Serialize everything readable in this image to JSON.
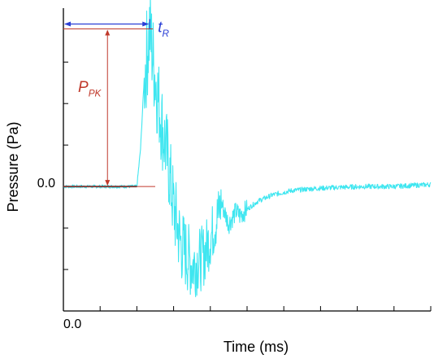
{
  "chart_data": {
    "type": "line",
    "xlabel": "Time (ms)",
    "ylabel": "Pressure (Pa)",
    "x_tick_label": "0.0",
    "y_tick_label": "0.0",
    "xlim": [
      0,
      10
    ],
    "ylim": [
      -3,
      4.3
    ],
    "x_ticks": [
      0,
      1,
      2,
      3,
      4,
      5,
      6,
      7,
      8,
      9,
      10
    ],
    "y_ticks": [
      -2,
      -1,
      0,
      1,
      2,
      3
    ],
    "grid": false,
    "legend": "none",
    "series": [
      {
        "color": "#3fe6f0",
        "x": [
          0,
          1.6,
          2.0,
          2.1,
          2.2,
          2.35,
          2.45,
          2.55,
          2.7,
          2.85,
          3.0,
          3.2,
          3.5,
          3.8,
          4.1,
          4.3,
          4.5,
          4.7,
          4.8,
          5.0,
          5.3,
          5.7,
          6.2,
          6.8,
          7.5,
          8.2,
          9.0,
          10.0
        ],
        "values": [
          0,
          0,
          0,
          0.9,
          2.6,
          3.8,
          3.0,
          2.3,
          1.4,
          0.6,
          -0.5,
          -1.4,
          -1.9,
          -1.7,
          -1.0,
          -0.4,
          -0.9,
          -0.6,
          -0.7,
          -0.55,
          -0.35,
          -0.2,
          -0.1,
          -0.05,
          -0.02,
          0,
          0,
          0.05
        ]
      }
    ],
    "annotations": [
      {
        "text": "t",
        "subscript": "R",
        "color": "#2a3fd6"
      },
      {
        "text": "P",
        "subscript": "PK",
        "color": "#c0392b"
      }
    ]
  }
}
